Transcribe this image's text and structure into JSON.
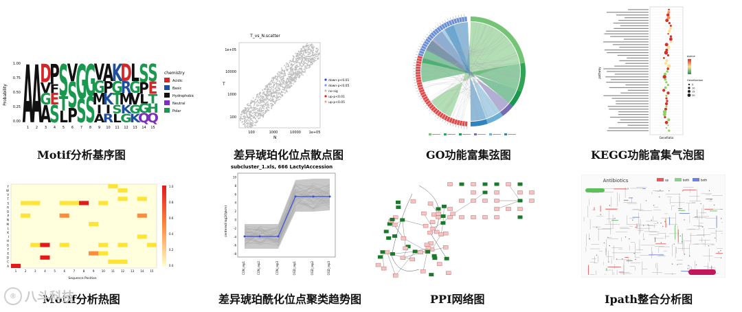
{
  "captions": {
    "motif_logo": "Motif分析基序图",
    "volcano": "差异琥珀化位点散点图",
    "go_chord": "GO功能富集弦图",
    "kegg_bubble": "KEGG功能富集气泡图",
    "motif_heat": "Motif分析热图",
    "cluster_trend": "差异琥珀酰化位点聚类趋势图",
    "ppi": "PPI网络图",
    "ipath": "Ipath整合分析图"
  },
  "motif_logo": {
    "ylabel": "Probability",
    "yticks": [
      "0.00",
      "0.25",
      "0.50",
      "0.75",
      "1.00"
    ],
    "xticks": [
      "1",
      "2",
      "3",
      "4",
      "5",
      "6",
      "7",
      "8",
      "9",
      "10",
      "11",
      "12",
      "13",
      "14",
      "15"
    ],
    "legend_title": "chemistry",
    "legend": [
      {
        "label": "Acidic",
        "color": "#d62728"
      },
      {
        "label": "Basic",
        "color": "#1f4e9c"
      },
      {
        "label": "Hydrophobic",
        "color": "#111111"
      },
      {
        "label": "Neutral",
        "color": "#7b2fbf"
      },
      {
        "label": "Polar",
        "color": "#1a9850"
      }
    ]
  },
  "scatter": {
    "title": "T_vs_N.scatter",
    "ylabel": "T",
    "xlabel": "N",
    "yticks": [
      "1e+05",
      "10000",
      "1000",
      "100"
    ],
    "xticks": [
      "100",
      "1000",
      "10000",
      "1e+05"
    ],
    "legend": [
      {
        "label": "down-p<0.01",
        "color": "#2b3ed8"
      },
      {
        "label": "down-p<0.05",
        "color": "#6fa0e8"
      },
      {
        "label": "no-sig",
        "color": "#bdbdbd"
      },
      {
        "label": "up-p<0.01",
        "color": "#e41a1c"
      },
      {
        "label": "up-p<0.05",
        "color": "#f4a582"
      }
    ]
  },
  "kegg": {
    "ylabel": "pathway",
    "xlabel": "GeneRatio",
    "legend_title_1": "qvalue",
    "legend_title_2": "GeneNumber",
    "size_labels": [
      "5",
      "10",
      "15",
      "20"
    ],
    "gradient": [
      "#d73027",
      "#fee08b",
      "#1a9850"
    ]
  },
  "heatmap": {
    "xlabel": "Sequence Position",
    "scale": [
      "1.0",
      "0.8",
      "0.6",
      "0.4",
      "0.2",
      "0.0"
    ],
    "rows": [
      "Y",
      "W",
      "V",
      "T",
      "S",
      "R",
      "Q",
      "P",
      "N",
      "M",
      "L",
      "K",
      "I",
      "H",
      "G",
      "F",
      "E",
      "D",
      "C",
      "A"
    ],
    "cols": [
      "1",
      "2",
      "3",
      "4",
      "5",
      "6",
      "7",
      "8",
      "9",
      "10",
      "11",
      "12",
      "13",
      "14",
      "15"
    ]
  },
  "cluster": {
    "title": "subcluster_1.xls, 666 LactylAccession",
    "ylabel": "centered log2(fpkm)",
    "yticks": [
      "10",
      "8",
      "6",
      "4",
      "2",
      "0",
      "-2",
      "-4",
      "-6",
      "-8"
    ],
    "xticks": [
      "CON_rep1",
      "CON_rep2",
      "CON_rep3",
      "OGD_rep1",
      "OGD_rep2",
      "OGD_rep3"
    ]
  },
  "ipath": {
    "title": "Antibiotics",
    "legend": [
      {
        "label": "up",
        "color": "#e8575a"
      },
      {
        "label": "both",
        "color": "#8bd18b"
      },
      {
        "label": "both",
        "color": "#6f7fe0"
      }
    ]
  },
  "watermark": {
    "text": "八斗科技"
  }
}
